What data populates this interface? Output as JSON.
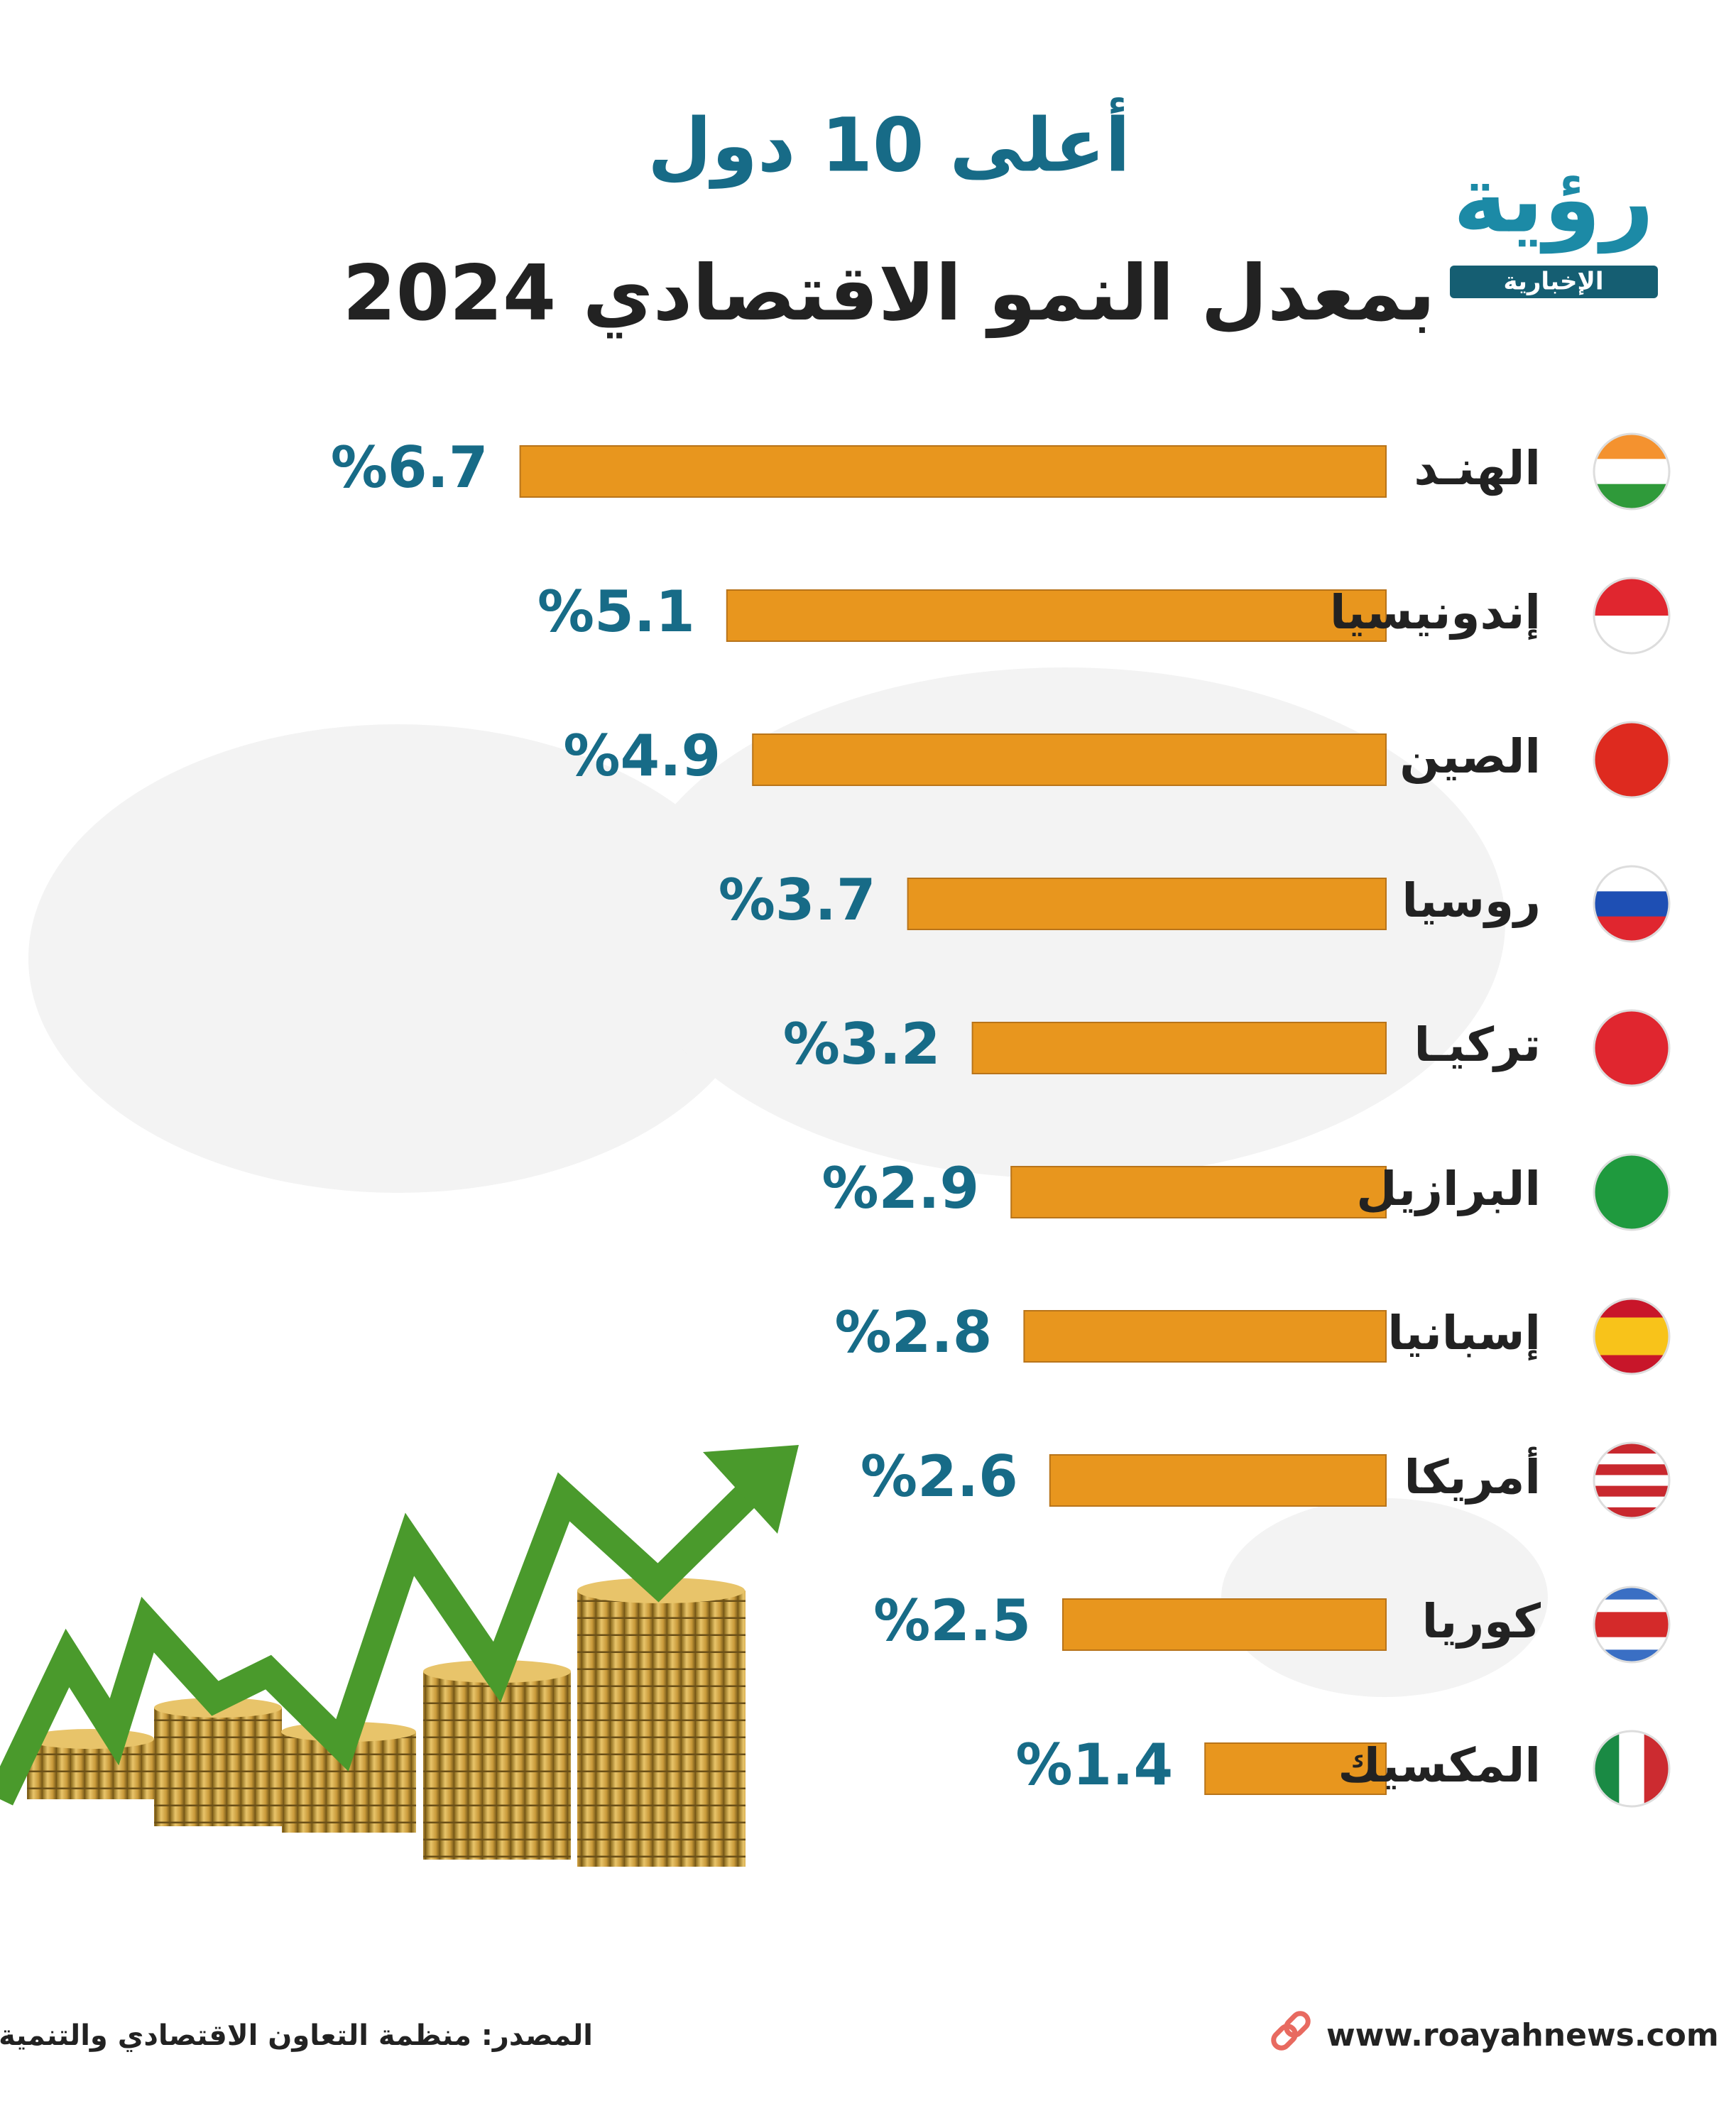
{
  "logo": {
    "name": "رؤية",
    "tagline": "الإخبارية"
  },
  "chart_data": {
    "type": "bar",
    "title": "أعلى 10 دول",
    "subtitle": "بمعدل النمو الاقتصادي 2024",
    "categories": [
      "الهنـد",
      "إندونيسيا",
      "الصين",
      "روسيا",
      "تركيـا",
      "البرازيل",
      "إسبانيا",
      "أمريكا",
      "كوريا",
      "المكسيك"
    ],
    "values": [
      6.7,
      5.1,
      4.9,
      3.7,
      3.2,
      2.9,
      2.8,
      2.6,
      2.5,
      1.4
    ],
    "value_labels": [
      "%6.7",
      "%5.1",
      "%4.9",
      "%3.7",
      "%3.2",
      "%2.9",
      "%2.8",
      "%2.6",
      "%2.5",
      "%1.4"
    ],
    "color": "#e8961e"
  },
  "footer": {
    "source": "المصدر: منظمة التعاون الاقتصادي والتنمية",
    "website": "www.roayahnews.com"
  }
}
